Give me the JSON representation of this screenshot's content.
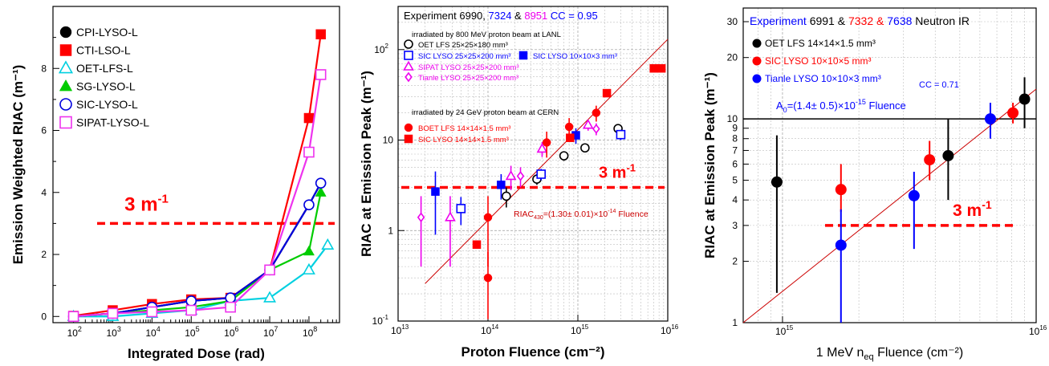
{
  "chart_data": [
    {
      "type": "line",
      "xlabel": "Integrated Dose (rad)",
      "ylabel": "Emission Weighted RIAC (m⁻¹)",
      "xscale": "log",
      "xlim": [
        30,
        600000000
      ],
      "ylim": [
        -0.2,
        10
      ],
      "grid": false,
      "legend_position": "top-left",
      "x_tick_exponents": [
        "2",
        "3",
        "4",
        "5",
        "6",
        "7",
        "8"
      ],
      "y_ticks": [
        0,
        2,
        4,
        6,
        8
      ],
      "threshold": {
        "y": 3,
        "label": "3 m",
        "sup": "-1",
        "color": "#ff0000"
      },
      "series": [
        {
          "name": "CPI-LYSO-L",
          "color": "#000000",
          "marker": "circle-filled",
          "x": [
            100,
            1000,
            10000,
            100000,
            1000000,
            10000000,
            100000000,
            200000000
          ],
          "y": [
            0,
            0.1,
            0.3,
            0.5,
            0.6,
            1.5,
            3.6,
            4.3
          ]
        },
        {
          "name": "CTI-LSO-L",
          "color": "#ff0000",
          "marker": "square-filled",
          "x": [
            100,
            1000,
            10000,
            100000,
            1000000,
            10000000,
            100000000,
            200000000
          ],
          "y": [
            0.02,
            0.2,
            0.4,
            0.55,
            0.6,
            1.5,
            6.4,
            9.1
          ]
        },
        {
          "name": "OET-LFS-L",
          "color": "#00d0e0",
          "marker": "triangle-open",
          "x": [
            100,
            1000,
            10000,
            100000,
            1000000,
            10000000,
            100000000,
            300000000
          ],
          "y": [
            0,
            0,
            0.1,
            0.2,
            0.5,
            0.6,
            1.5,
            2.3
          ]
        },
        {
          "name": "SG-LYSO-L",
          "color": "#00cc00",
          "marker": "triangle-filled",
          "x": [
            100,
            1000,
            10000,
            100000,
            1000000,
            10000000,
            100000000,
            200000000
          ],
          "y": [
            0,
            0.1,
            0.2,
            0.3,
            0.5,
            1.5,
            2.1,
            4.0
          ]
        },
        {
          "name": "SIC-LYSO-L",
          "color": "#0000dd",
          "marker": "circle-open",
          "x": [
            100,
            1000,
            10000,
            100000,
            1000000,
            10000000,
            100000000,
            200000000
          ],
          "y": [
            0,
            0.1,
            0.3,
            0.5,
            0.6,
            1.5,
            3.6,
            4.3
          ]
        },
        {
          "name": "SIPAT-LYSO-L",
          "color": "#ee33ee",
          "marker": "square-open",
          "x": [
            100,
            1000,
            10000,
            100000,
            1000000,
            10000000,
            100000000,
            200000000
          ],
          "y": [
            0,
            0.1,
            0.15,
            0.2,
            0.3,
            1.5,
            5.3,
            7.8
          ]
        }
      ]
    },
    {
      "type": "scatter",
      "xlabel": "Proton Fluence (cm⁻²)",
      "ylabel": "RIAC at Emission Peak (m⁻¹)",
      "xscale": "log",
      "yscale": "log",
      "xlim": [
        10000000000000,
        10000000000000000
      ],
      "ylim": [
        0.1,
        300
      ],
      "grid": true,
      "x_tick_exponents": [
        "13",
        "14",
        "15",
        "16"
      ],
      "y_tick_labels": [
        {
          "v": 0.1,
          "t": "10",
          "sup": "-1"
        },
        {
          "v": 1,
          "t": "1",
          "sup": ""
        },
        {
          "v": 10,
          "t": "10",
          "sup": ""
        },
        {
          "v": 100,
          "t": "10",
          "sup": "2"
        }
      ],
      "header": [
        {
          "t": "Experiment 6990, ",
          "c": "#000000"
        },
        {
          "t": "7324",
          "c": "#0000ff"
        },
        {
          "t": " & ",
          "c": "#000000"
        },
        {
          "t": "8951",
          "c": "#ee00ee"
        },
        {
          "t": "          CC = 0.95",
          "c": "#0000ff"
        }
      ],
      "notes": {
        "lanl": "irradiated by 800 MeV proton beam at LANL",
        "cern": "irradiated by 24 GeV proton beam at CERN",
        "fit": "RIAC",
        "fit_sub": "430",
        "fit_rest": "=(1.30± 0.01)×10",
        "fit_exp": "-14",
        "fit_tail": " Fluence"
      },
      "legend": [
        {
          "name": "OET LFS  25×25×180 mm³",
          "color": "#000000",
          "marker": "circle-open"
        },
        {
          "name": "SIC LYSO  25×25×200 mm³",
          "color": "#0000ff",
          "marker": "square-open"
        },
        {
          "name": "SIC LYSO   10×10×3 mm³",
          "color": "#0000ff",
          "marker": "square-filled"
        },
        {
          "name": "SIPAT LYSO  25×25×200 mm³",
          "color": "#ee00ee",
          "marker": "triangle-open"
        },
        {
          "name": "Tianle LYSO  25×25×200 mm³",
          "color": "#ee00ee",
          "marker": "diamond-open"
        },
        {
          "name": "BOET LFS  14×14×1.5 mm³",
          "color": "#ff0000",
          "marker": "circle-filled"
        },
        {
          "name": "SIC LYSO  14×14×1.5 mm³",
          "color": "#ff0000",
          "marker": "square-filled"
        }
      ],
      "threshold": {
        "y": 3,
        "label": "3 m",
        "sup": "-1",
        "color": "#ff0000"
      },
      "fit_line": {
        "x": [
          20000000000000,
          10000000000000000
        ],
        "y": [
          0.26,
          130
        ],
        "color": "#cc0000"
      },
      "series": [
        {
          "name": "OET LFS",
          "color": "#000000",
          "marker": "circle-open",
          "x": [
            160000000000000,
            350000000000000,
            700000000000000,
            1200000000000000,
            2800000000000000
          ],
          "y": [
            2.4,
            3.7,
            6.7,
            8.2,
            13.4
          ],
          "err": [
            0.6,
            0.5,
            0.8,
            0.8,
            1.5
          ]
        },
        {
          "name": "SIC LYSO 25x25x200",
          "color": "#0000ff",
          "marker": "square-open",
          "x": [
            50000000000000,
            390000000000000,
            3000000000000000
          ],
          "y": [
            1.75,
            4.2,
            11.5
          ],
          "err": [
            0.6,
            0.6,
            1.5
          ]
        },
        {
          "name": "SIC LYSO 10x10x3",
          "color": "#0000ff",
          "marker": "square-filled",
          "x": [
            26000000000000,
            140000000000000,
            950000000000000
          ],
          "y": [
            2.7,
            3.2,
            11.3
          ],
          "err": [
            1.8,
            1.0,
            2.2
          ]
        },
        {
          "name": "SIPAT LYSO",
          "color": "#ee00ee",
          "marker": "triangle-open",
          "x": [
            38000000000000,
            180000000000000,
            400000000000000,
            1300000000000000
          ],
          "y": [
            1.4,
            4.0,
            8.0,
            14.7
          ],
          "err": [
            1.0,
            1.2,
            1.5,
            2.0
          ]
        },
        {
          "name": "Tianle LYSO",
          "color": "#ee00ee",
          "marker": "diamond-open",
          "x": [
            18000000000000,
            230000000000000,
            1600000000000000
          ],
          "y": [
            1.4,
            4.0,
            13.3
          ],
          "err": [
            1.0,
            1.0,
            2.0
          ]
        },
        {
          "name": "BOET LFS",
          "color": "#ff0000",
          "marker": "circle-filled",
          "x": [
            100000000000000,
            100000000000000,
            450000000000000,
            800000000000000,
            1600000000000000
          ],
          "y": [
            1.4,
            0.3,
            9.4,
            14.0,
            20.0
          ],
          "err": [
            1.0,
            0.28,
            3.0,
            3.5,
            4.0
          ]
        },
        {
          "name": "SIC LYSO 14x14x1.5",
          "color": "#ff0000",
          "marker": "square-filled",
          "x": [
            75000000000000,
            820000000000000,
            2100000000000000,
            7000000000000000,
            8500000000000000
          ],
          "y": [
            0.7,
            10.6,
            33.0,
            62.0,
            62.0
          ],
          "err": [
            0,
            0,
            0,
            0,
            0
          ]
        }
      ]
    },
    {
      "type": "scatter",
      "xlabel": "1 MeV n",
      "xlabel_sub": "eq",
      "xlabel_rest": " Fluence (cm⁻²)",
      "ylabel": "RIAC at Emission Peak (m⁻¹)",
      "xscale": "log",
      "yscale": "log",
      "xlim": [
        700000000000000,
        10000000000000000
      ],
      "ylim": [
        1,
        35
      ],
      "grid": true,
      "x_tick_exponents": [
        "15",
        "16"
      ],
      "y_tick_labels": [
        {
          "v": 1,
          "t": "1"
        },
        {
          "v": 2,
          "t": "2"
        },
        {
          "v": 3,
          "t": "3"
        },
        {
          "v": 4,
          "t": "4"
        },
        {
          "v": 5,
          "t": "5"
        },
        {
          "v": 6,
          "t": "6"
        },
        {
          "v": 7,
          "t": "7"
        },
        {
          "v": 8,
          "t": "8"
        },
        {
          "v": 9,
          "t": "9"
        },
        {
          "v": 10,
          "t": "10"
        },
        {
          "v": 20,
          "t": "20"
        },
        {
          "v": 30,
          "t": "30"
        }
      ],
      "header": [
        {
          "t": "Experiment ",
          "c": "#0000ff"
        },
        {
          "t": "6991",
          "c": "#000000"
        },
        {
          "t": " & ",
          "c": "#000000"
        },
        {
          "t": "7332",
          "c": "#ff0000"
        },
        {
          "t": " & ",
          "c": "#ff0000"
        },
        {
          "t": "7638",
          "c": "#0000ff"
        },
        {
          "t": "   Neutron IR",
          "c": "#000000"
        }
      ],
      "cc": "CC = 0.71",
      "fit_note": {
        "pre": "A",
        "sub": "0",
        "mid": "=(1.4± 0.5)×10",
        "exp": "-15",
        "post": " Fluence"
      },
      "legend": [
        {
          "name": "OET LFS  14×14×1.5 mm³",
          "color": "#000000"
        },
        {
          "name": "SIC LYSO  10×10×5 mm³",
          "color": "#ff0000"
        },
        {
          "name": "Tianle LYSO  10×10×3 mm³",
          "color": "#0000ff"
        }
      ],
      "threshold": {
        "y": 3,
        "label": "3 m",
        "sup": "-1",
        "color": "#ff0000"
      },
      "fit_line": {
        "x": [
          700000000000000,
          10000000000000000
        ],
        "y": [
          1.0,
          14.0
        ],
        "color": "#cc0000"
      },
      "series": [
        {
          "name": "OET LFS",
          "color": "#000000",
          "marker": "circle-filled",
          "x": [
            950000000000000,
            4500000000000000,
            9000000000000000
          ],
          "y": [
            4.9,
            6.6,
            12.5
          ],
          "lo": [
            1.4,
            4.0,
            9.0
          ],
          "hi": [
            8.3,
            10.0,
            16.0
          ]
        },
        {
          "name": "SIC LYSO",
          "color": "#ff0000",
          "marker": "circle-filled",
          "x": [
            1700000000000000,
            3800000000000000,
            8100000000000000
          ],
          "y": [
            4.5,
            6.3,
            10.7
          ],
          "lo": [
            3.5,
            5.0,
            9.5
          ],
          "hi": [
            6.0,
            7.8,
            12.0
          ]
        },
        {
          "name": "Tianle LYSO",
          "color": "#0000ff",
          "marker": "circle-filled",
          "x": [
            1700000000000000,
            3300000000000000,
            6600000000000000
          ],
          "y": [
            2.4,
            4.2,
            10.0
          ],
          "lo": [
            1.0,
            2.3,
            8.0
          ],
          "hi": [
            3.6,
            5.5,
            12.0
          ]
        }
      ]
    }
  ]
}
